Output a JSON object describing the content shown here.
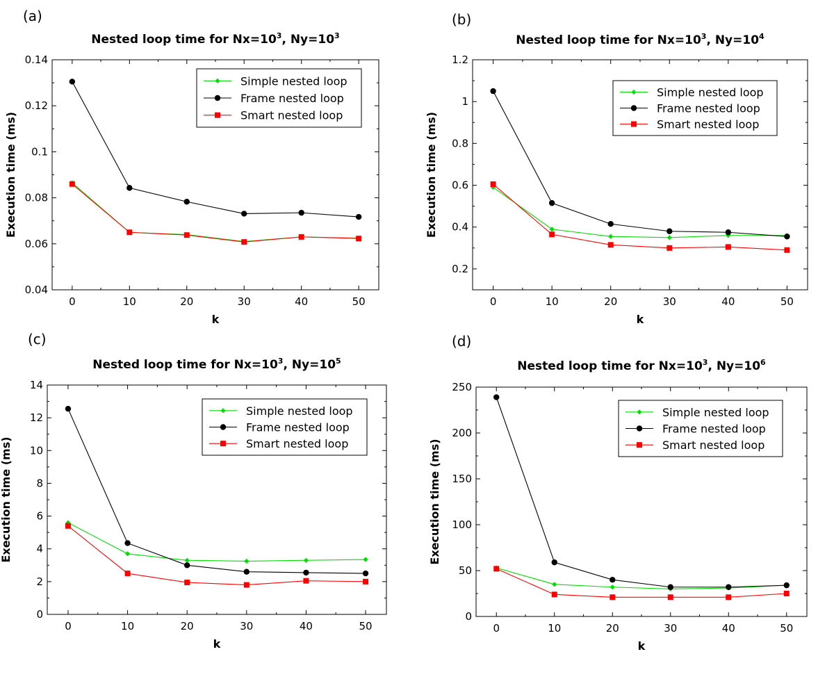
{
  "chart_data": [
    {
      "panel": "(a)",
      "type": "line",
      "title_main": "Nested loop time for Nx=10",
      "title_sup1": "3",
      "title_mid": ", Ny=10",
      "title_sup2": "3",
      "xlabel": "k",
      "ylabel": "Execution time (ms)",
      "x": [
        0,
        10,
        20,
        30,
        40,
        50
      ],
      "xlim": [
        -3.5,
        53.5
      ],
      "xticks": [
        0,
        10,
        20,
        30,
        40,
        50
      ],
      "ylim": [
        0.04,
        0.14
      ],
      "yticks": [
        "0.04",
        "0.06",
        "0.08",
        "0.1",
        "0.12",
        "0.14"
      ],
      "grid": false,
      "legend_position": "top-right",
      "series": [
        {
          "name": "Simple nested loop",
          "color": "#00e000",
          "marker": "diamond",
          "values": [
            0.0865,
            0.065,
            0.064,
            0.061,
            0.063,
            0.0625
          ]
        },
        {
          "name": "Frame nested loop",
          "color": "#000000",
          "marker": "circle",
          "values": [
            0.1305,
            0.0843,
            0.0783,
            0.0731,
            0.0735,
            0.0717
          ]
        },
        {
          "name": "Smart nested loop",
          "color": "#ff0000",
          "marker": "square",
          "values": [
            0.086,
            0.065,
            0.0638,
            0.0608,
            0.063,
            0.0623
          ]
        }
      ]
    },
    {
      "panel": "(b)",
      "type": "line",
      "title_main": "Nested loop time for Nx=10",
      "title_sup1": "3",
      "title_mid": ", Ny=10",
      "title_sup2": "4",
      "xlabel": "k",
      "ylabel": "Execution time (ms)",
      "x": [
        0,
        10,
        20,
        30,
        40,
        50
      ],
      "xlim": [
        -3.5,
        53.5
      ],
      "xticks": [
        0,
        10,
        20,
        30,
        40,
        50
      ],
      "ylim": [
        0.1,
        1.2
      ],
      "yticks": [
        "0.2",
        "0.4",
        "0.6",
        "0.8",
        "1",
        "1.2"
      ],
      "grid": false,
      "legend_position": "top-right",
      "series": [
        {
          "name": "Simple nested loop",
          "color": "#00e000",
          "marker": "diamond",
          "values": [
            0.59,
            0.39,
            0.355,
            0.35,
            0.36,
            0.36
          ]
        },
        {
          "name": "Frame nested loop",
          "color": "#000000",
          "marker": "circle",
          "values": [
            1.05,
            0.515,
            0.415,
            0.38,
            0.375,
            0.355
          ]
        },
        {
          "name": "Smart nested loop",
          "color": "#ff0000",
          "marker": "square",
          "values": [
            0.605,
            0.365,
            0.315,
            0.3,
            0.305,
            0.29
          ]
        }
      ]
    },
    {
      "panel": "(c)",
      "type": "line",
      "title_main": "Nested loop time for Nx=10",
      "title_sup1": "3",
      "title_mid": ", Ny=10",
      "title_sup2": "5",
      "xlabel": "k",
      "ylabel": "Execution time (ms)",
      "x": [
        0,
        10,
        20,
        30,
        40,
        50
      ],
      "xlim": [
        -3.5,
        53.5
      ],
      "xticks": [
        0,
        10,
        20,
        30,
        40,
        50
      ],
      "ylim": [
        0,
        14
      ],
      "yticks": [
        "0",
        "2",
        "4",
        "6",
        "8",
        "10",
        "12",
        "14"
      ],
      "grid": false,
      "legend_position": "top-right",
      "series": [
        {
          "name": "Simple nested loop",
          "color": "#00e000",
          "marker": "diamond",
          "values": [
            5.6,
            3.7,
            3.3,
            3.25,
            3.3,
            3.35
          ]
        },
        {
          "name": "Frame nested loop",
          "color": "#000000",
          "marker": "circle",
          "values": [
            12.55,
            4.35,
            3.0,
            2.6,
            2.55,
            2.5
          ]
        },
        {
          "name": "Smart nested loop",
          "color": "#ff0000",
          "marker": "square",
          "values": [
            5.4,
            2.5,
            1.95,
            1.8,
            2.05,
            2.0
          ]
        }
      ]
    },
    {
      "panel": "(d)",
      "type": "line",
      "title_main": "Nested loop time for Nx=10",
      "title_sup1": "3",
      "title_mid": ", Ny=10",
      "title_sup2": "6",
      "xlabel": "k",
      "ylabel": "Execution time (ms)",
      "x": [
        0,
        10,
        20,
        30,
        40,
        50
      ],
      "xlim": [
        -3.5,
        53.5
      ],
      "xticks": [
        0,
        10,
        20,
        30,
        40,
        50
      ],
      "ylim": [
        0,
        250
      ],
      "yticks": [
        "0",
        "50",
        "100",
        "150",
        "200",
        "250"
      ],
      "grid": false,
      "legend_position": "top-right",
      "series": [
        {
          "name": "Simple nested loop",
          "color": "#00e000",
          "marker": "diamond",
          "values": [
            53,
            35,
            32,
            30,
            31,
            34
          ]
        },
        {
          "name": "Frame nested loop",
          "color": "#000000",
          "marker": "circle",
          "values": [
            239,
            59,
            40,
            32,
            32,
            34
          ]
        },
        {
          "name": "Smart nested loop",
          "color": "#ff0000",
          "marker": "square",
          "values": [
            52,
            24,
            21,
            21,
            21,
            25
          ]
        }
      ]
    }
  ]
}
